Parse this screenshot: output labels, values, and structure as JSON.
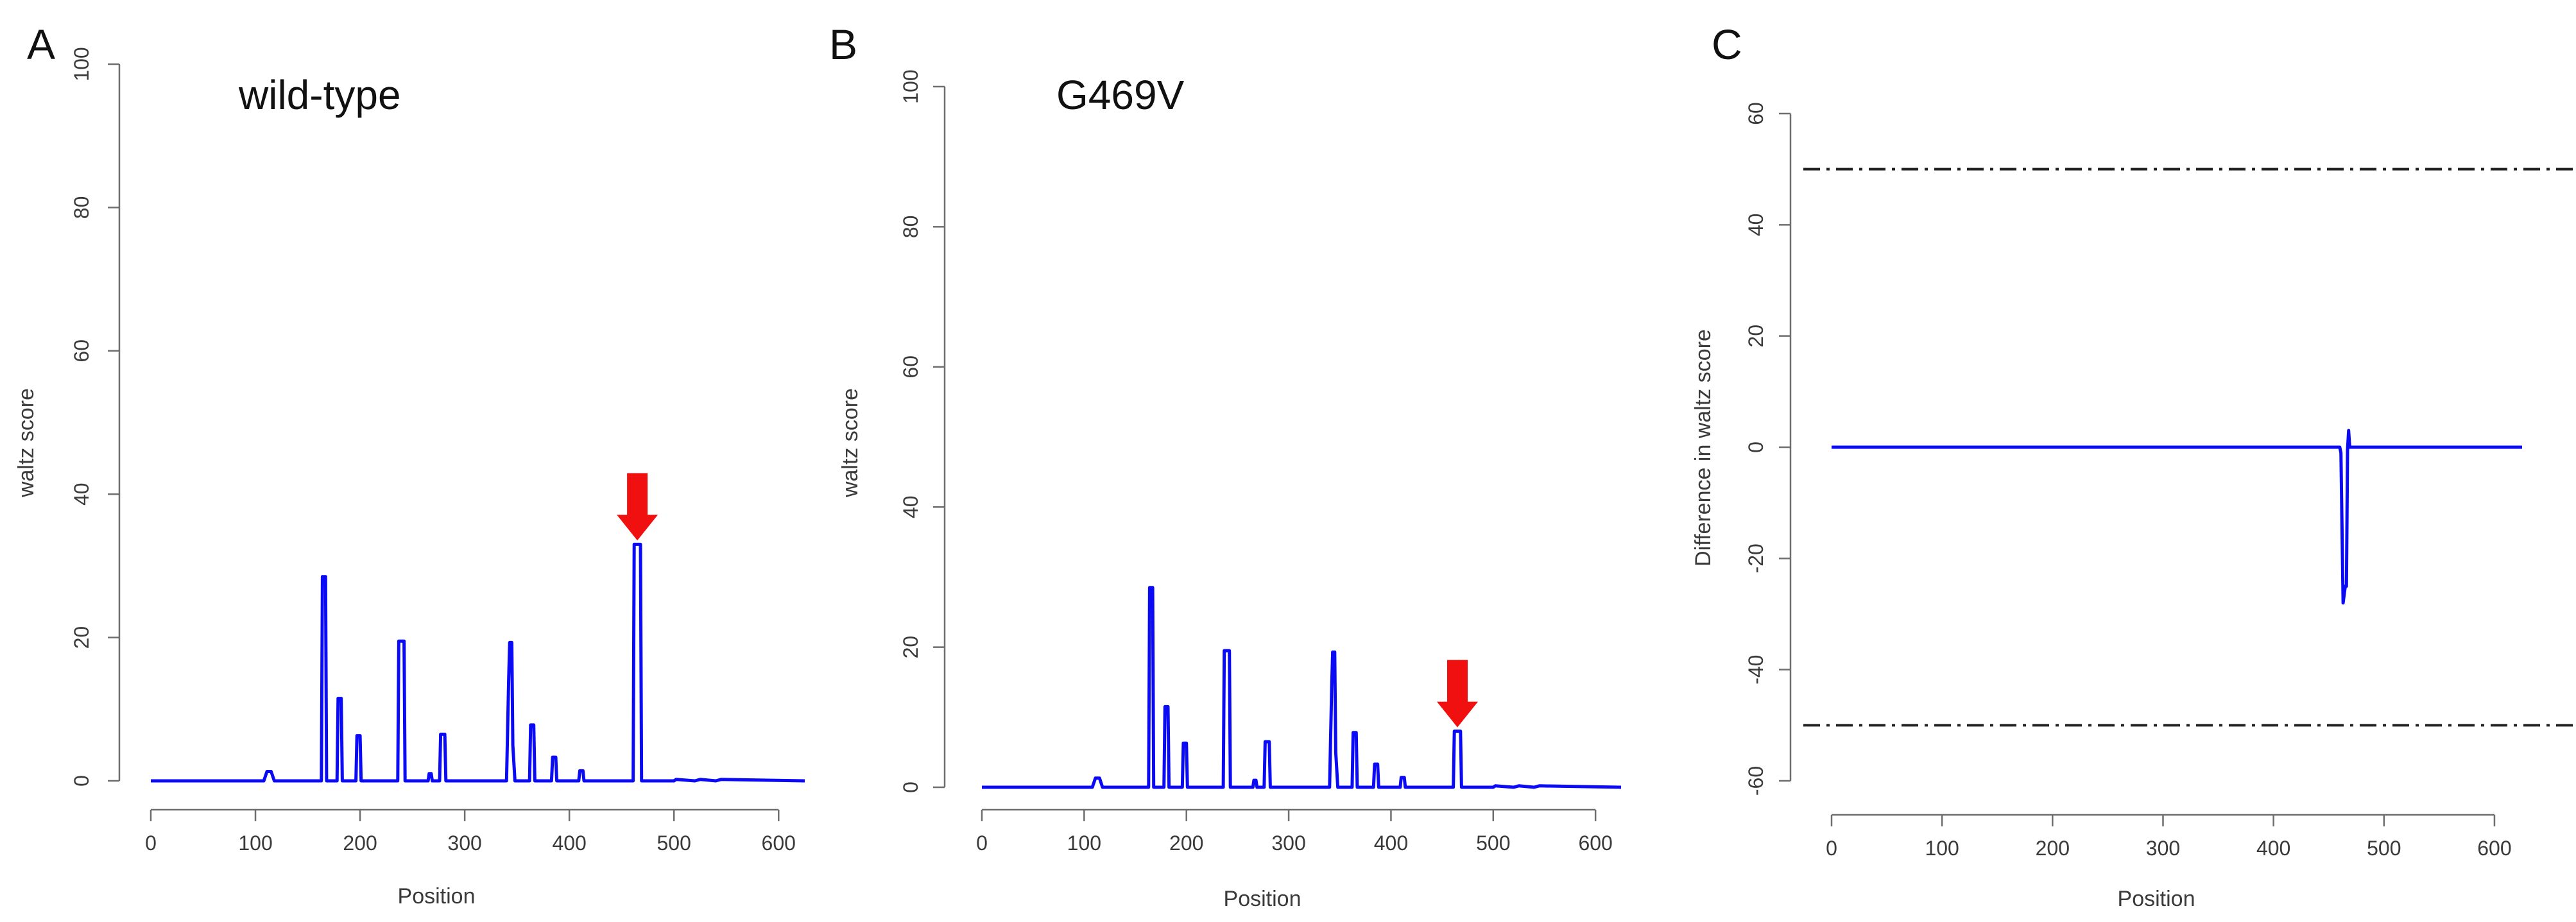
{
  "colors": {
    "line": "#0a0af5",
    "arrow": "#f01010",
    "axis": "#6e6e6e",
    "refline": "#222222"
  },
  "chart_data": [
    {
      "type": "line",
      "panel_label": "A",
      "title": "wild-type",
      "xlabel": "Position",
      "ylabel": "waltz score",
      "xlim": [
        0,
        625
      ],
      "ylim": [
        0,
        100
      ],
      "xticks": [
        "0",
        "100",
        "200",
        "300",
        "400",
        "500",
        "600"
      ],
      "yticks": [
        "0",
        "20",
        "40",
        "60",
        "80",
        "100"
      ],
      "arrow_position": 465,
      "series": [
        {
          "name": "waltz score",
          "x": [
            0,
            108,
            111,
            115,
            118,
            163,
            164,
            167,
            168,
            178,
            179,
            182,
            183,
            196,
            197,
            200,
            201,
            236,
            237,
            242,
            243,
            265,
            266,
            268,
            269,
            276,
            277,
            281,
            282,
            340,
            342,
            343,
            345,
            346,
            348,
            362,
            363,
            366,
            367,
            383,
            384,
            387,
            388,
            409,
            410,
            413,
            414,
            461,
            462,
            468,
            469,
            500,
            502,
            520,
            525,
            540,
            545,
            625
          ],
          "y": [
            0,
            0,
            1.3,
            1.3,
            0,
            0,
            28.5,
            28.5,
            0,
            0,
            11.5,
            11.5,
            0,
            0,
            6.3,
            6.3,
            0,
            0,
            19.5,
            19.5,
            0,
            0,
            1,
            1,
            0,
            0,
            6.5,
            6.5,
            0,
            0,
            14,
            19.3,
            19.3,
            5,
            0,
            0,
            7.8,
            7.8,
            0,
            0,
            3.3,
            3.3,
            0,
            0,
            1.4,
            1.4,
            0,
            0,
            33,
            33,
            0,
            0,
            0.2,
            0,
            0.2,
            0,
            0.2,
            0
          ]
        }
      ]
    },
    {
      "type": "line",
      "panel_label": "B",
      "title": "G469V",
      "xlabel": "Position",
      "ylabel": "waltz score",
      "xlim": [
        0,
        625
      ],
      "ylim": [
        0,
        100
      ],
      "xticks": [
        "0",
        "100",
        "200",
        "300",
        "400",
        "500",
        "600"
      ],
      "yticks": [
        "0",
        "20",
        "40",
        "60",
        "80",
        "100"
      ],
      "arrow_position": 465,
      "series": [
        {
          "name": "waltz score",
          "x": [
            0,
            108,
            111,
            115,
            118,
            163,
            164,
            167,
            168,
            178,
            179,
            182,
            183,
            196,
            197,
            200,
            201,
            236,
            237,
            242,
            243,
            265,
            266,
            268,
            269,
            276,
            277,
            281,
            282,
            340,
            342,
            343,
            345,
            346,
            348,
            362,
            363,
            366,
            367,
            383,
            384,
            387,
            388,
            409,
            410,
            413,
            414,
            461,
            462,
            468,
            469,
            500,
            502,
            520,
            525,
            540,
            545,
            625
          ],
          "y": [
            0,
            0,
            1.3,
            1.3,
            0,
            0,
            28.5,
            28.5,
            0,
            0,
            11.5,
            11.5,
            0,
            0,
            6.3,
            6.3,
            0,
            0,
            19.5,
            19.5,
            0,
            0,
            1,
            1,
            0,
            0,
            6.5,
            6.5,
            0,
            0,
            14,
            19.3,
            19.3,
            5,
            0,
            0,
            7.8,
            7.8,
            0,
            0,
            3.3,
            3.3,
            0,
            0,
            1.4,
            1.4,
            0,
            0,
            8,
            8,
            0,
            0,
            0.2,
            0,
            0.2,
            0,
            0.2,
            0
          ]
        }
      ]
    },
    {
      "type": "line",
      "panel_label": "C",
      "title": "",
      "xlabel": "Position",
      "ylabel": "Difference in waltz score",
      "xlim": [
        0,
        625
      ],
      "ylim": [
        -60,
        60
      ],
      "xticks": [
        "0",
        "100",
        "200",
        "300",
        "400",
        "500",
        "600"
      ],
      "yticks": [
        "-60",
        "-40",
        "-20",
        "0",
        "20",
        "40",
        "60"
      ],
      "reference_lines": [
        50,
        -50
      ],
      "series": [
        {
          "name": "difference",
          "x": [
            0,
            460,
            461,
            463,
            465,
            466,
            467,
            468,
            469,
            625
          ],
          "y": [
            0,
            0,
            -1,
            -28,
            -25,
            -25,
            -0.5,
            3,
            0,
            0
          ]
        }
      ]
    }
  ]
}
